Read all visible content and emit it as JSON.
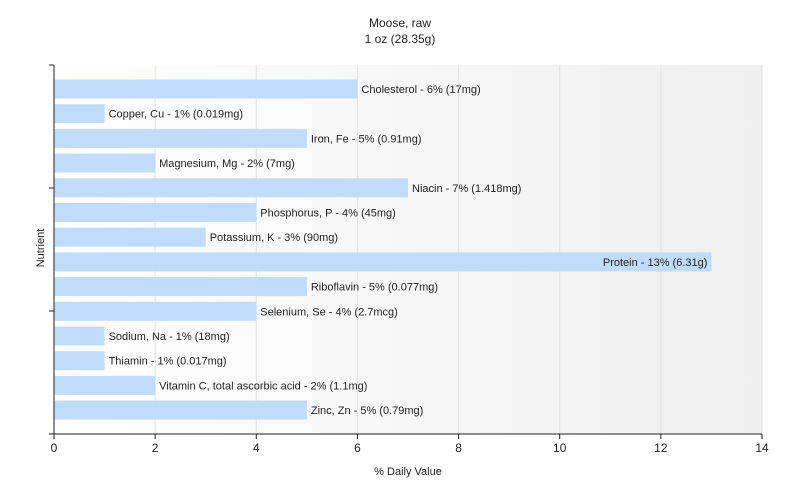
{
  "chart_data": {
    "type": "bar",
    "orientation": "horizontal",
    "title": "Moose, raw",
    "subtitle": "1 oz (28.35g)",
    "xlabel": "% Daily Value",
    "ylabel": "Nutrient",
    "xlim": [
      0,
      14
    ],
    "xticks": [
      0,
      2,
      4,
      6,
      8,
      10,
      12,
      14
    ],
    "grid": true,
    "bar_color": "#c1dcfb",
    "categories": [
      "Cholesterol",
      "Copper, Cu",
      "Iron, Fe",
      "Magnesium, Mg",
      "Niacin",
      "Phosphorus, P",
      "Potassium, K",
      "Protein",
      "Riboflavin",
      "Selenium, Se",
      "Sodium, Na",
      "Thiamin",
      "Vitamin C, total ascorbic acid",
      "Zinc, Zn"
    ],
    "values": [
      6,
      1,
      5,
      2,
      7,
      4,
      3,
      13,
      5,
      4,
      1,
      1,
      2,
      5
    ],
    "labels": [
      "Cholesterol - 6% (17mg)",
      "Copper, Cu - 1% (0.019mg)",
      "Iron, Fe - 5% (0.91mg)",
      "Magnesium, Mg - 2% (7mg)",
      "Niacin - 7% (1.418mg)",
      "Phosphorus, P - 4% (45mg)",
      "Potassium, K - 3% (90mg)",
      "Protein - 13% (6.31g)",
      "Riboflavin - 5% (0.077mg)",
      "Selenium, Se - 4% (2.7mcg)",
      "Sodium, Na - 1% (18mg)",
      "Thiamin - 1% (0.017mg)",
      "Vitamin C, total ascorbic acid - 2% (1.1mg)",
      "Zinc, Zn - 5% (0.79mg)"
    ]
  }
}
